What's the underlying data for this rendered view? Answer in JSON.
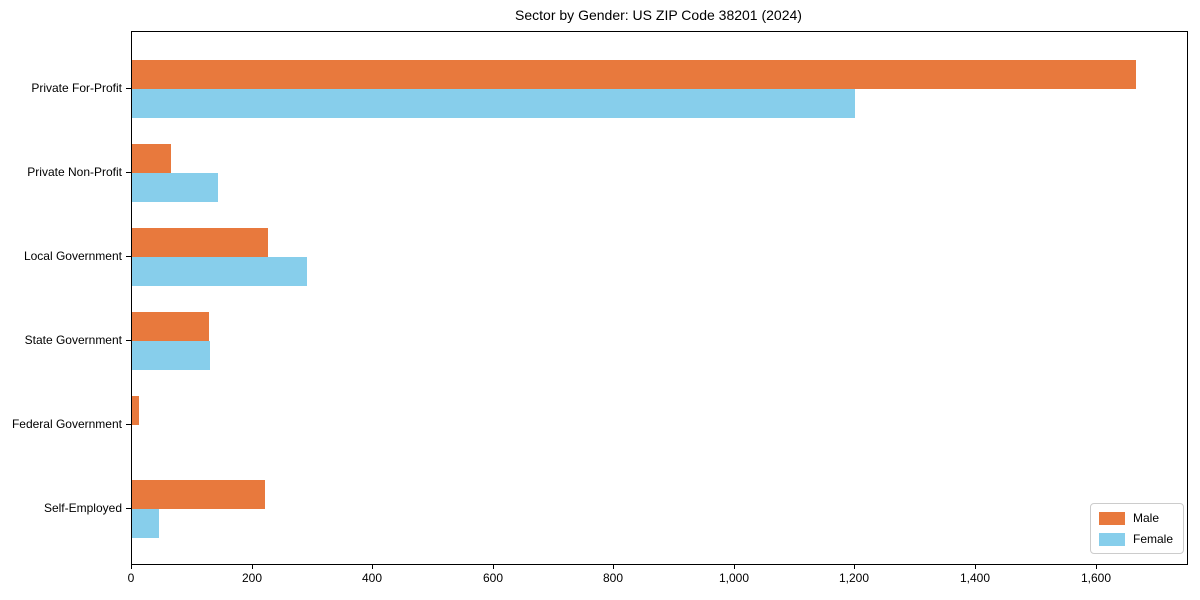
{
  "chart_data": {
    "type": "bar",
    "orientation": "horizontal",
    "title": "Sector by Gender: US ZIP Code 38201 (2024)",
    "categories": [
      "Private For-Profit",
      "Private Non-Profit",
      "Local Government",
      "State Government",
      "Federal Government",
      "Self-Employed"
    ],
    "series": [
      {
        "name": "Male",
        "color": "#e8793d",
        "values": [
          1665,
          65,
          225,
          128,
          12,
          220
        ]
      },
      {
        "name": "Female",
        "color": "#87ceeb",
        "values": [
          1200,
          142,
          290,
          130,
          0,
          45
        ]
      }
    ],
    "xlim": [
      0,
      1750
    ],
    "xticks": [
      0,
      200,
      400,
      600,
      800,
      1000,
      1200,
      1400,
      1600
    ],
    "xtick_labels": [
      "0",
      "200",
      "400",
      "600",
      "800",
      "1,000",
      "1,200",
      "1,400",
      "1,600"
    ],
    "xlabel": "",
    "ylabel": "",
    "grid": false,
    "legend_position": "lower right"
  }
}
